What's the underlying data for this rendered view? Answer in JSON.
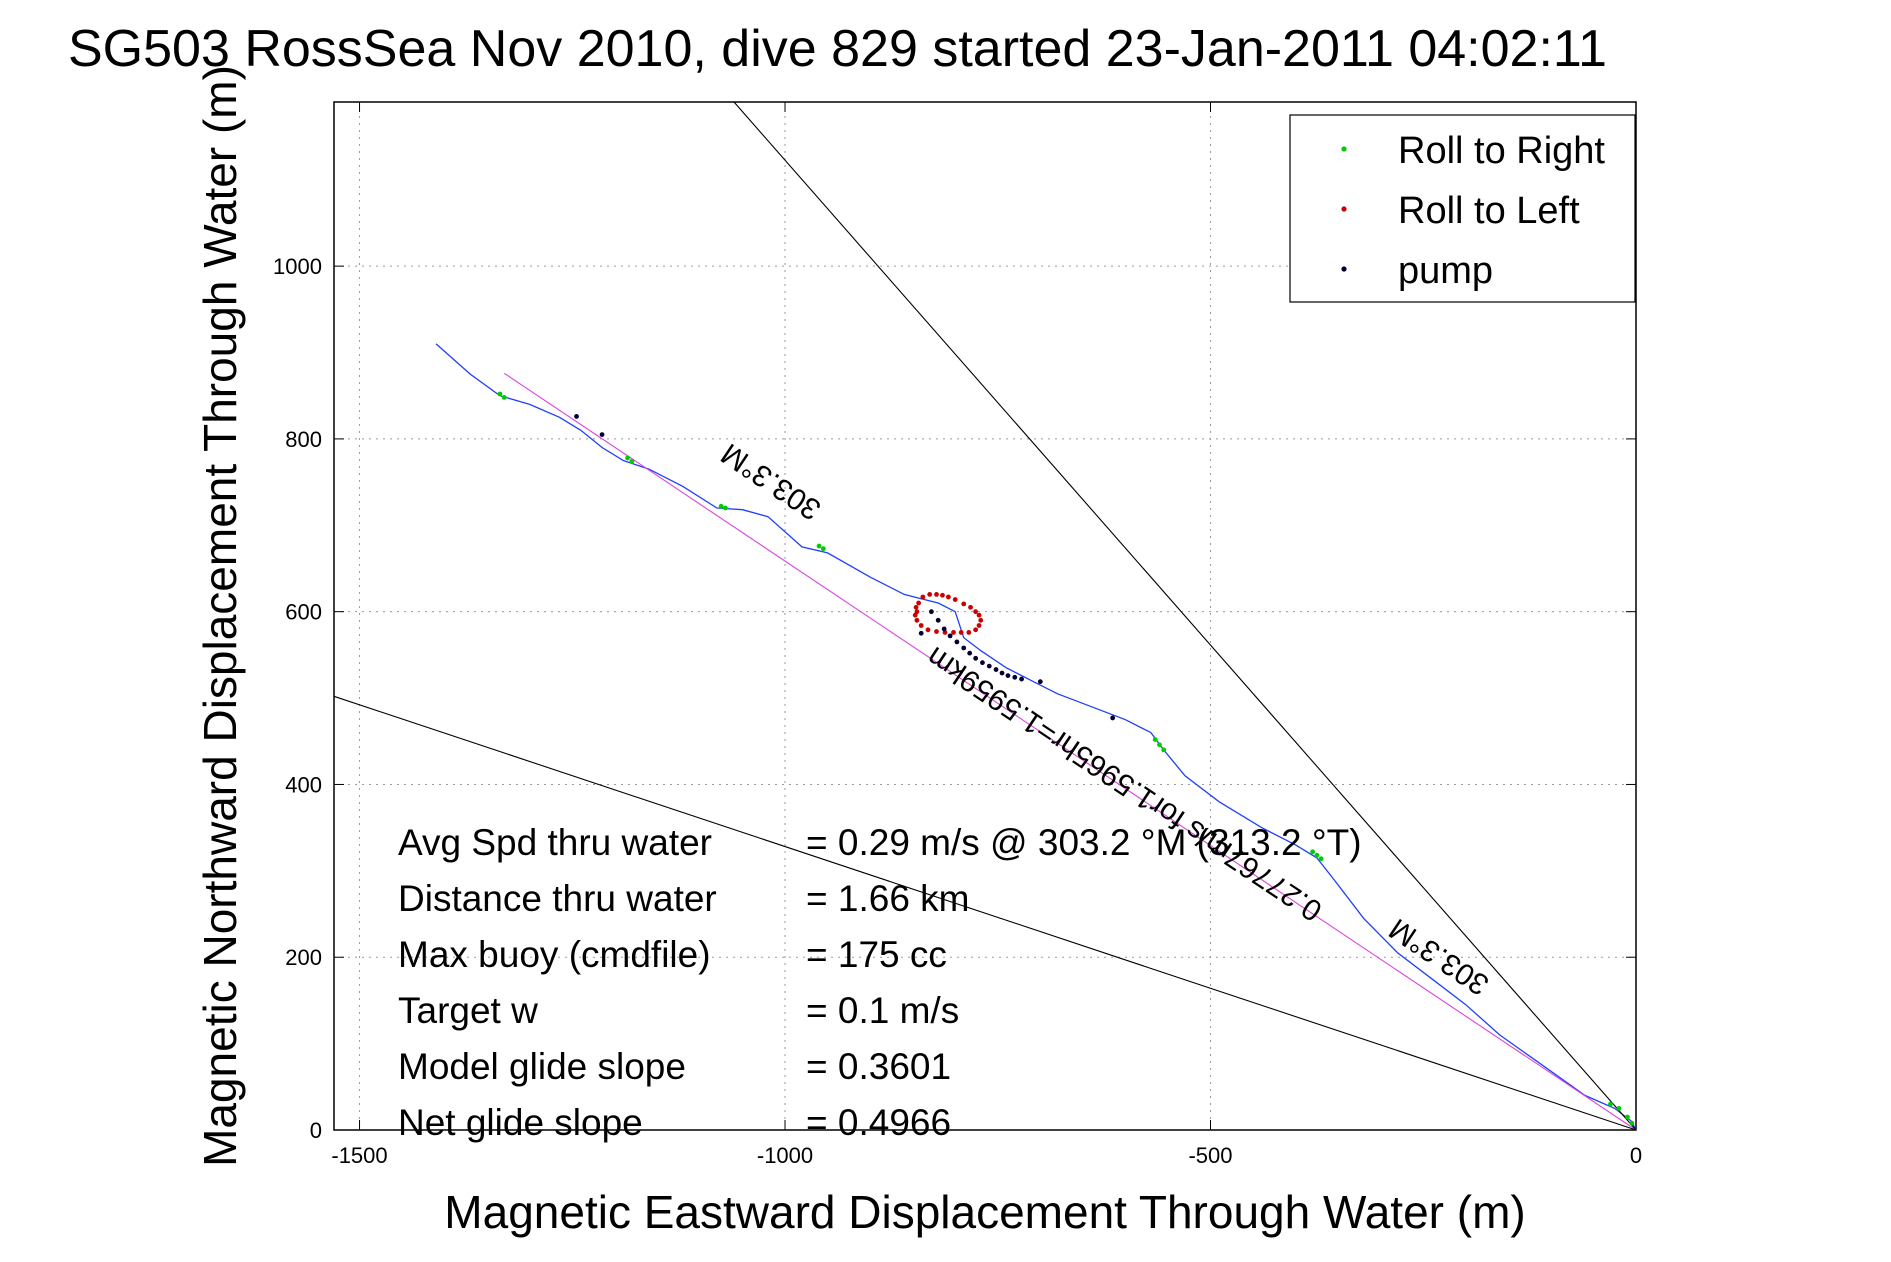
{
  "chart_data": {
    "type": "line",
    "title": "SG503 RossSea Nov 2010, dive 829 started 23-Jan-2011 04:02:11",
    "xlabel": "Magnetic Eastward Displacement Through Water (m)",
    "ylabel": "Magnetic Northward Displacement Through Water (m)",
    "xlim": [
      -1530,
      0
    ],
    "ylim": [
      0,
      1190
    ],
    "xticks": [
      -1500,
      -1000,
      -500,
      0
    ],
    "yticks": [
      0,
      200,
      400,
      600,
      800,
      1000
    ],
    "grid": true,
    "legend_position": "top-right",
    "legend": [
      {
        "label": "Roll to Right",
        "color": "#00cc00"
      },
      {
        "label": "Roll to Left",
        "color": "#cc0000"
      },
      {
        "label": "pump",
        "color": "#000033"
      }
    ],
    "series": [
      {
        "kind": "track",
        "color": "#1f3fff",
        "x": [
          -1410,
          -1370,
          -1335,
          -1300,
          -1265,
          -1240,
          -1215,
          -1190,
          -1160,
          -1120,
          -1080,
          -1050,
          -1020,
          -980,
          -950,
          -900,
          -860,
          -840,
          -820,
          -800,
          -790,
          -770,
          -740,
          -710,
          -680,
          -640,
          -600,
          -570,
          -555,
          -530,
          -490,
          -440,
          -400,
          -375,
          -355,
          -320,
          -280,
          -240,
          -200,
          -160,
          -110,
          -60,
          -25,
          -5,
          0
        ],
        "y": [
          910,
          875,
          850,
          840,
          825,
          810,
          790,
          775,
          765,
          745,
          720,
          718,
          710,
          675,
          668,
          640,
          620,
          615,
          610,
          600,
          570,
          555,
          535,
          520,
          505,
          490,
          475,
          460,
          440,
          410,
          380,
          350,
          330,
          315,
          290,
          245,
          205,
          175,
          145,
          110,
          75,
          40,
          25,
          10,
          0
        ]
      },
      {
        "kind": "fit-line",
        "color": "#dd44dd",
        "x": [
          -1330,
          0
        ],
        "y": [
          876,
          0
        ]
      },
      {
        "kind": "envelope",
        "color": "#000000",
        "x": [
          -1530,
          0
        ],
        "y": [
          502,
          0
        ]
      },
      {
        "kind": "envelope",
        "color": "#000000",
        "x": [
          -1060,
          0
        ],
        "y": [
          1190,
          0
        ]
      },
      {
        "name": "Roll to Right",
        "kind": "points",
        "color": "#00cc00",
        "x": [
          -1335,
          -1330,
          -1185,
          -1180,
          -1075,
          -1070,
          -960,
          -955,
          -565,
          -560,
          -555,
          -380,
          -375,
          -370,
          -30,
          -20,
          -10,
          -5
        ],
        "y": [
          852,
          848,
          778,
          774,
          722,
          720,
          676,
          673,
          452,
          446,
          440,
          322,
          318,
          314,
          30,
          25,
          15,
          8
        ]
      },
      {
        "name": "Roll to Left",
        "kind": "points",
        "color": "#cc0000",
        "x": [
          -845,
          -843,
          -838,
          -830,
          -822,
          -815,
          -808,
          -800,
          -790,
          -782,
          -776,
          -772,
          -770,
          -772,
          -776,
          -784,
          -793,
          -802,
          -812,
          -822,
          -832,
          -840,
          -845,
          -847,
          -846
        ],
        "y": [
          600,
          610,
          617,
          620,
          620,
          619,
          617,
          614,
          609,
          605,
          600,
          596,
          590,
          584,
          579,
          576,
          576,
          576,
          576,
          577,
          579,
          584,
          590,
          596,
          605
        ]
      },
      {
        "name": "pump",
        "kind": "points",
        "color": "#000033",
        "x": [
          -1245,
          -1215,
          -840,
          -828,
          -820,
          -813,
          -806,
          -798,
          -790,
          -783,
          -776,
          -768,
          -760,
          -752,
          -745,
          -738,
          -730,
          -722,
          -700,
          -615
        ],
        "y": [
          826,
          805,
          575,
          600,
          590,
          580,
          572,
          565,
          558,
          552,
          546,
          541,
          537,
          533,
          529,
          526,
          524,
          522,
          519,
          477
        ]
      }
    ],
    "stats": [
      {
        "label": "Avg Spd thru water",
        "value": "=  0.29 m/s @ 303.2 °M (313.2 °T)"
      },
      {
        "label": "Distance thru water",
        "value": "=  1.66 km"
      },
      {
        "label": "Max buoy (cmdfile)",
        "value": "= 175 cc"
      },
      {
        "label": "Target w",
        "value": "= 0.1 m/s"
      },
      {
        "label": "Model glide slope",
        "value": "= 0.3601"
      },
      {
        "label": "Net glide slope",
        "value": "= 0.4966"
      }
    ],
    "annotations": [
      {
        "text": "303.3°M",
        "x": -1010,
        "y": 760
      },
      {
        "text": "0.27767m/s for1.5965hr=1.5959km",
        "x": -595,
        "y": 410
      },
      {
        "text": "303.3°M",
        "x": -225,
        "y": 210
      }
    ]
  }
}
